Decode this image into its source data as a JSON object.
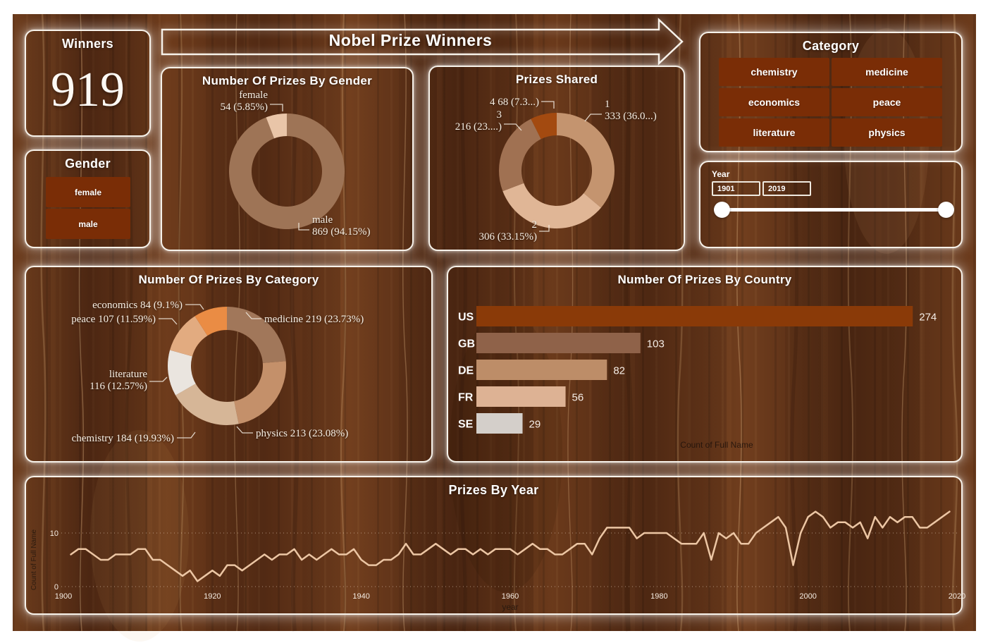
{
  "banner": {
    "title": "Nobel Prize Winners"
  },
  "winners_card": {
    "title": "Winners",
    "value": "919"
  },
  "gender_filter": {
    "title": "Gender",
    "options": [
      "female",
      "male"
    ]
  },
  "category_filter": {
    "title": "Category",
    "options": [
      "chemistry",
      "medicine",
      "economics",
      "peace",
      "literature",
      "physics"
    ]
  },
  "year_filter": {
    "title": "Year",
    "start": "1901",
    "end": "2019"
  },
  "colors": {
    "card_border": "#f7f2ea",
    "button_bg": "#7a2d06",
    "line_stroke": "#ecc6a4",
    "axis_text_light": "#f5ece2",
    "axis_text_dark": "#2e1c10"
  },
  "chart_data": [
    {
      "id": "gender_donut",
      "type": "donut",
      "title": "Number Of Prizes By Gender",
      "series": [
        {
          "label": "male",
          "value": 869,
          "pct": "94.15%",
          "color": "#9e7456",
          "label_lines": [
            "male",
            "869 (94.15%)"
          ]
        },
        {
          "label": "female",
          "value": 54,
          "pct": "5.85%",
          "color": "#e9c5a8",
          "label_lines": [
            "female",
            "54 (5.85%)"
          ]
        }
      ]
    },
    {
      "id": "shared_donut",
      "type": "donut",
      "title": "Prizes Shared",
      "series": [
        {
          "label": "1",
          "value": 333,
          "pct": "36.0...",
          "color": "#c4946f",
          "label_lines": [
            "1",
            "333 (36.0...)"
          ]
        },
        {
          "label": "2",
          "value": 306,
          "pct": "33.15%",
          "color": "#e0b696",
          "label_lines": [
            "2",
            "306 (33.15%)"
          ]
        },
        {
          "label": "3",
          "value": 216,
          "pct": "23....",
          "color": "#a07152",
          "label_lines": [
            "3",
            "216 (23....)"
          ]
        },
        {
          "label": "4",
          "value": 68,
          "pct": "7.3...",
          "color": "#a34a10",
          "label_lines": [
            "4 68 (7.3...)"
          ]
        }
      ]
    },
    {
      "id": "category_donut",
      "type": "donut",
      "title": "Number Of Prizes By Category",
      "series": [
        {
          "label": "medicine",
          "value": 219,
          "pct": "23.73%",
          "color": "#a1775a",
          "label_lines": [
            "medicine 219 (23.73%)"
          ]
        },
        {
          "label": "physics",
          "value": 213,
          "pct": "23.08%",
          "color": "#c4906a",
          "label_lines": [
            "physics 213 (23.08%)"
          ]
        },
        {
          "label": "chemistry",
          "value": 184,
          "pct": "19.93%",
          "color": "#d6b697",
          "label_lines": [
            "chemistry 184 (19.93%)"
          ]
        },
        {
          "label": "literature",
          "value": 116,
          "pct": "12.57%",
          "color": "#eae5df",
          "label_lines": [
            "literature",
            "116 (12.57%)"
          ]
        },
        {
          "label": "peace",
          "value": 107,
          "pct": "11.59%",
          "color": "#e2ab80",
          "label_lines": [
            "peace 107 (11.59%)"
          ]
        },
        {
          "label": "economics",
          "value": 84,
          "pct": "9.1%",
          "color": "#ea8c44",
          "label_lines": [
            "economics 84 (9.1%)"
          ]
        }
      ]
    },
    {
      "id": "country_bar",
      "type": "bar",
      "title": "Number Of Prizes By Country",
      "xlabel": "Count of Full Name",
      "categories": [
        "US",
        "GB",
        "DE",
        "FR",
        "SE"
      ],
      "values": [
        274,
        103,
        82,
        56,
        29
      ],
      "bar_colors": [
        "#8a3a08",
        "#8f6249",
        "#bd8d68",
        "#ddb294",
        "#d4cfca"
      ]
    },
    {
      "id": "year_line",
      "type": "line",
      "title": "Prizes By Year",
      "xlabel": "year",
      "ylabel": "Count of Full Name",
      "x_ticks": [
        1900,
        1920,
        1940,
        1960,
        1980,
        2000,
        2020
      ],
      "y_ticks": [
        0,
        10
      ],
      "ylim": [
        0,
        15
      ],
      "xlim": [
        1900,
        2020
      ],
      "x_start_year": 1901,
      "values": [
        6,
        7,
        7,
        6,
        5,
        5,
        6,
        6,
        6,
        7,
        7,
        5,
        5,
        4,
        3,
        2,
        3,
        1,
        2,
        3,
        2,
        4,
        4,
        3,
        4,
        5,
        6,
        5,
        6,
        6,
        7,
        5,
        6,
        5,
        6,
        7,
        6,
        6,
        7,
        5,
        4,
        4,
        5,
        5,
        6,
        8,
        6,
        6,
        7,
        8,
        7,
        6,
        7,
        7,
        6,
        7,
        6,
        7,
        7,
        7,
        6,
        7,
        8,
        7,
        7,
        6,
        6,
        7,
        8,
        8,
        6,
        9,
        11,
        11,
        11,
        11,
        9,
        10,
        10,
        10,
        10,
        9,
        8,
        8,
        8,
        10,
        5,
        10,
        9,
        10,
        8,
        8,
        10,
        11,
        12,
        13,
        11,
        4,
        10,
        13,
        14,
        13,
        11,
        12,
        12,
        11,
        12,
        9,
        13,
        11,
        13,
        12,
        13,
        13,
        11,
        11,
        12,
        13,
        14
      ]
    }
  ]
}
